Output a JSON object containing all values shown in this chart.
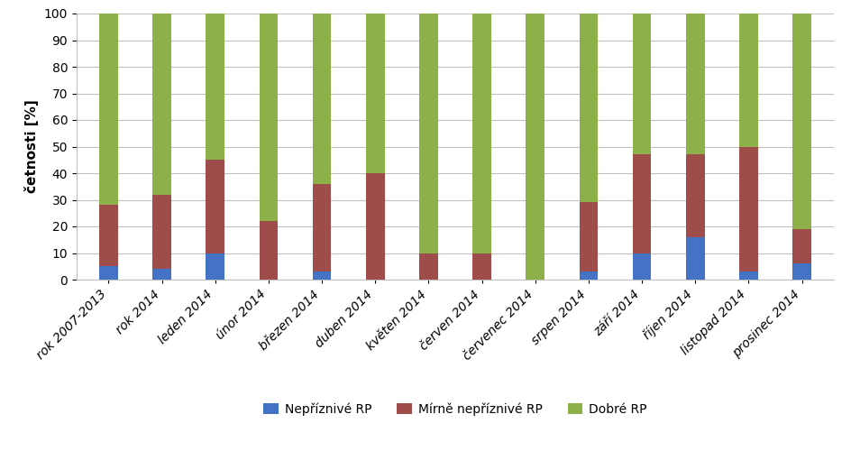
{
  "categories": [
    "rok 2007-2013",
    "rok 2014",
    "leden 2014",
    "únor 2014",
    "březen 2014",
    "duben 2014",
    "květen 2014",
    "červen 2014",
    "červenec 2014",
    "srpen 2014",
    "září 2014",
    "říjen 2014",
    "listopad 2014",
    "prosinec 2014"
  ],
  "blue": [
    5,
    4,
    10,
    0,
    3,
    0,
    0,
    0,
    0,
    3,
    10,
    16,
    3,
    6
  ],
  "red": [
    23,
    28,
    35,
    22,
    33,
    40,
    10,
    10,
    0,
    26,
    37,
    31,
    47,
    13
  ],
  "green": [
    72,
    68,
    55,
    78,
    64,
    60,
    90,
    90,
    100,
    71,
    53,
    53,
    50,
    81
  ],
  "blue_color": "#4472C4",
  "red_color": "#9E4D4A",
  "green_color": "#8DB048",
  "ylabel": "četnosti [%]",
  "ylim": [
    0,
    100
  ],
  "yticks": [
    0,
    10,
    20,
    30,
    40,
    50,
    60,
    70,
    80,
    90,
    100
  ],
  "legend_labels": [
    "Nepříznivé RP",
    "Mírně nepříznivé RP",
    "Dobré RP"
  ],
  "background_color": "#FFFFFF",
  "grid_color": "#BFBFBF",
  "label_fontsize": 11,
  "tick_fontsize": 10,
  "legend_fontsize": 10,
  "bar_width": 0.35
}
